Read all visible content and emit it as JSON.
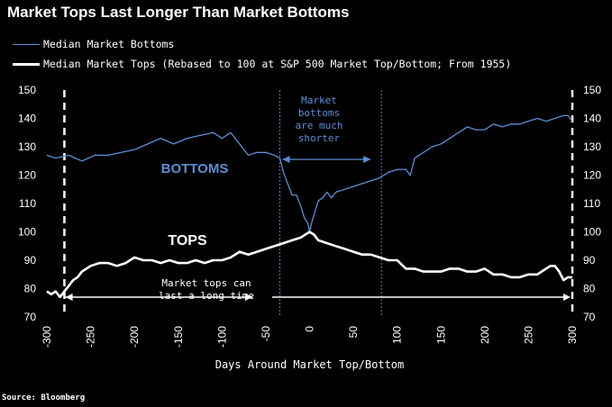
{
  "title": "Market Tops Last Longer Than Market Bottoms",
  "source": "Source: Bloomberg",
  "chart_data": {
    "type": "line",
    "title": "Market Tops Last Longer Than Market Bottoms",
    "xlabel": "Days Around Market Top/Bottom",
    "ylabel": "",
    "xlim": [
      -300,
      300
    ],
    "ylim": [
      70,
      150
    ],
    "xticks": [
      -300,
      -250,
      -200,
      -150,
      -100,
      -50,
      0,
      50,
      100,
      150,
      200,
      250,
      300
    ],
    "yticks": [
      70,
      80,
      90,
      100,
      110,
      120,
      130,
      140,
      150
    ],
    "grid": false,
    "legend_position": "top-left",
    "series": [
      {
        "name": "Median Market Bottoms",
        "color": "#5b8fd6",
        "x": [
          -300,
          -290,
          -275,
          -260,
          -245,
          -230,
          -215,
          -200,
          -185,
          -170,
          -155,
          -140,
          -125,
          -110,
          -100,
          -90,
          -80,
          -70,
          -60,
          -50,
          -40,
          -34,
          -30,
          -25,
          -20,
          -15,
          -10,
          -6,
          -2,
          0,
          3,
          6,
          10,
          15,
          20,
          25,
          30,
          40,
          50,
          60,
          70,
          80,
          90,
          100,
          110,
          115,
          120,
          130,
          140,
          150,
          160,
          170,
          180,
          190,
          200,
          210,
          220,
          230,
          240,
          250,
          260,
          270,
          280,
          290,
          295,
          300
        ],
        "values": [
          127,
          126,
          127,
          125,
          127,
          127,
          128,
          129,
          131,
          133,
          131,
          133,
          134,
          135,
          133,
          135,
          131,
          127,
          128,
          128,
          127,
          126,
          121,
          117,
          113,
          113,
          109,
          105,
          103,
          100,
          104,
          107,
          111,
          112,
          114,
          112,
          114,
          115,
          116,
          117,
          118,
          119,
          121,
          122,
          122,
          120,
          126,
          128,
          130,
          131,
          133,
          135,
          137,
          136,
          136,
          138,
          137,
          138,
          138,
          139,
          140,
          139,
          140,
          141,
          141,
          139
        ]
      },
      {
        "name": "Median Market Tops (Rebased to 100 at S&P 500 Market Top/Bottom; From 1955)",
        "color": "#ffffff",
        "x": [
          -300,
          -295,
          -290,
          -285,
          -280,
          -275,
          -270,
          -265,
          -260,
          -250,
          -240,
          -230,
          -220,
          -210,
          -200,
          -190,
          -180,
          -170,
          -160,
          -150,
          -140,
          -130,
          -120,
          -110,
          -100,
          -90,
          -80,
          -70,
          -60,
          -50,
          -40,
          -30,
          -20,
          -10,
          -5,
          0,
          5,
          10,
          20,
          30,
          40,
          50,
          60,
          70,
          80,
          90,
          100,
          110,
          120,
          130,
          140,
          150,
          160,
          170,
          180,
          190,
          200,
          210,
          220,
          230,
          240,
          250,
          260,
          270,
          275,
          280,
          285,
          290,
          295,
          300
        ],
        "values": [
          79,
          78,
          79,
          77,
          79,
          81,
          83,
          84,
          86,
          88,
          89,
          89,
          88,
          89,
          91,
          90,
          90,
          89,
          90,
          89,
          89,
          90,
          89,
          90,
          90,
          91,
          93,
          92,
          93,
          94,
          95,
          96,
          97,
          98,
          99,
          100,
          99,
          97,
          96,
          95,
          94,
          93,
          92,
          92,
          91,
          90,
          90,
          87,
          87,
          86,
          86,
          86,
          87,
          87,
          86,
          86,
          87,
          85,
          85,
          84,
          84,
          85,
          85,
          87,
          88,
          88,
          86,
          83,
          84,
          84
        ]
      }
    ],
    "annotations": {
      "bottoms_label": "BOTTOMS",
      "tops_label": "TOPS",
      "bottoms_note_lines": [
        "Market",
        "bottoms",
        "are much",
        "shorter"
      ],
      "tops_note_lines": [
        "Market tops can",
        "last a long time"
      ],
      "bottoms_window": [
        -34,
        82
      ],
      "tops_window": [
        -280,
        300
      ]
    }
  }
}
